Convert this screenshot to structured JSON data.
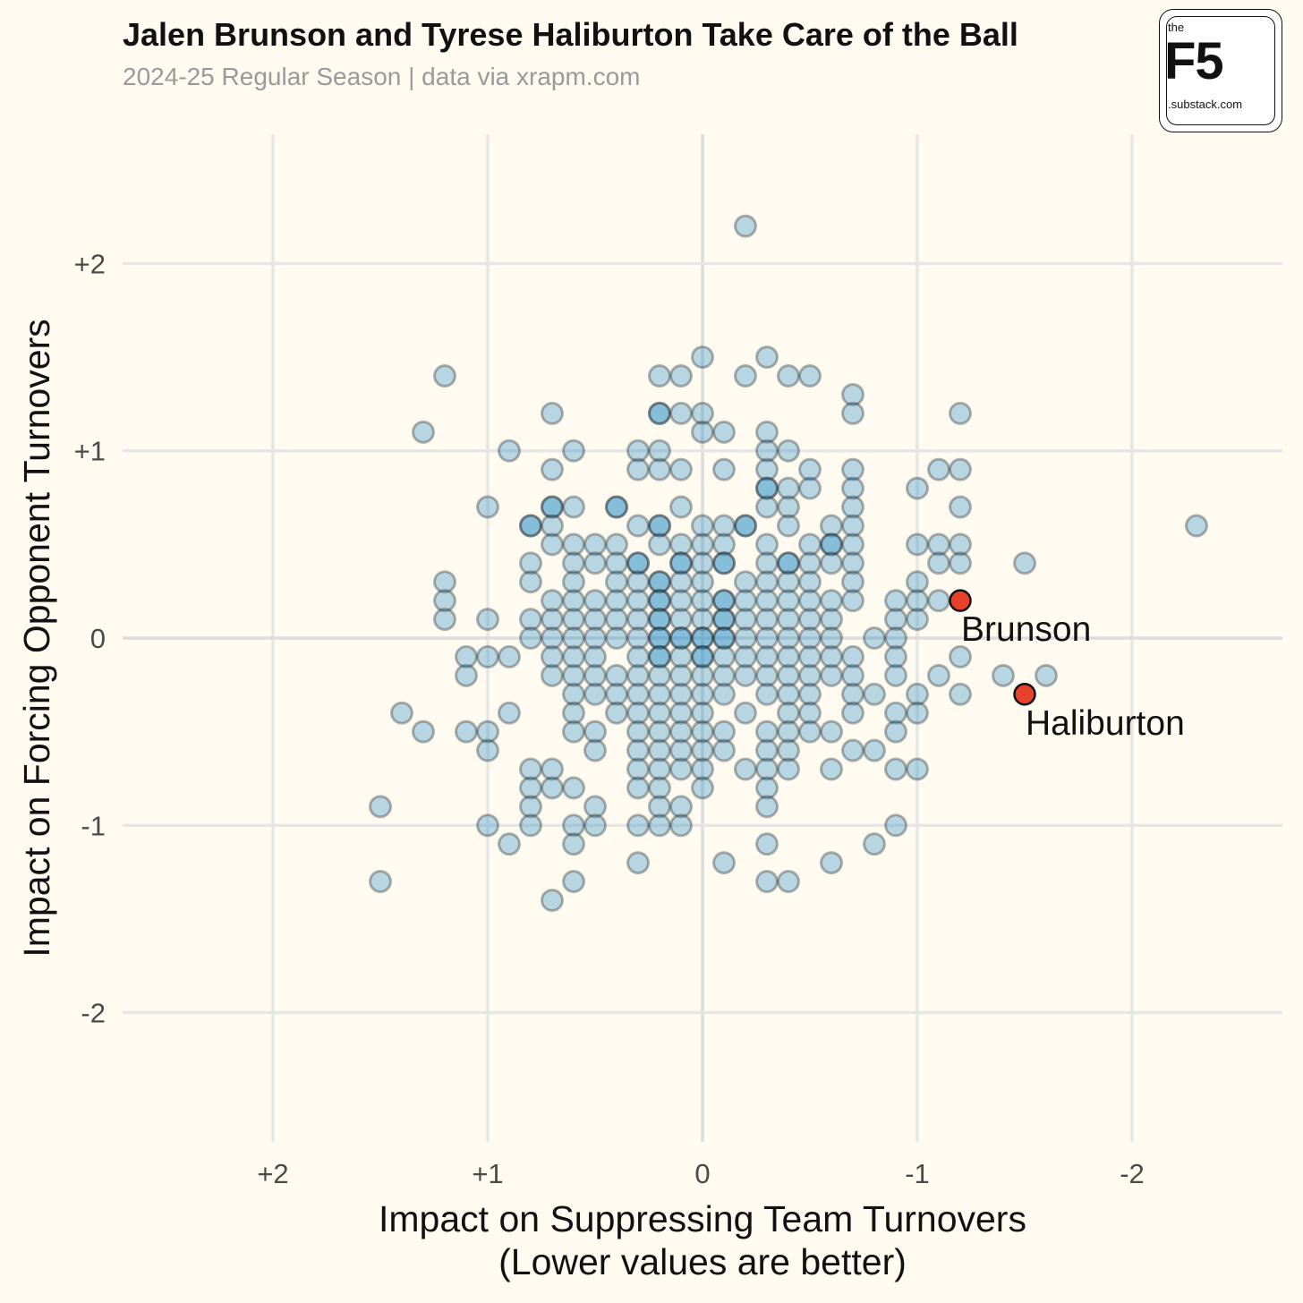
{
  "header": {
    "title": "Jalen Brunson and Tyrese Haliburton Take Care of the Ball",
    "subtitle": "2024-25 Regular Season | data via xrapm.com"
  },
  "logo": {
    "top": "the",
    "main": "F5",
    "bottom": ".substack.com"
  },
  "colors": {
    "background": "#fffbf0",
    "point_fill": "#1f8ac4",
    "point_stroke": "#1a1a1a",
    "highlight_fill": "#e8412c",
    "grid": "#e6e6e6"
  },
  "chart_data": {
    "type": "scatter",
    "xlabel": "Impact on Suppressing Team Turnovers",
    "xlabel_note": "(Lower values are better)",
    "ylabel": "Impact on Forcing Opponent Turnovers",
    "x_reversed": true,
    "xlim": [
      2.7,
      -2.7
    ],
    "ylim": [
      -2.7,
      2.7
    ],
    "x_ticks": [
      {
        "v": 2,
        "label": "+2"
      },
      {
        "v": 1,
        "label": "+1"
      },
      {
        "v": 0,
        "label": "0"
      },
      {
        "v": -1,
        "label": "-1"
      },
      {
        "v": -2,
        "label": "-2"
      }
    ],
    "y_ticks": [
      {
        "v": 2,
        "label": "+2"
      },
      {
        "v": 1,
        "label": "+1"
      },
      {
        "v": 0,
        "label": "0"
      },
      {
        "v": -1,
        "label": "-1"
      },
      {
        "v": -2,
        "label": "-2"
      }
    ],
    "grid": true,
    "points": [
      [
        -0.2,
        2.2
      ],
      [
        0,
        1.5
      ],
      [
        -0.3,
        1.5
      ],
      [
        0.2,
        1.4
      ],
      [
        0.1,
        1.4
      ],
      [
        -0.2,
        1.4
      ],
      [
        -0.4,
        1.4
      ],
      [
        -0.5,
        1.4
      ],
      [
        1.2,
        1.4
      ],
      [
        -0.7,
        1.3
      ],
      [
        0.7,
        1.2
      ],
      [
        0.2,
        1.2
      ],
      [
        0.2,
        1.2
      ],
      [
        0.1,
        1.2
      ],
      [
        0,
        1.2
      ],
      [
        -0.7,
        1.2
      ],
      [
        -1.2,
        1.2
      ],
      [
        1.3,
        1.1
      ],
      [
        0,
        1.1
      ],
      [
        -0.1,
        1.1
      ],
      [
        -0.3,
        1.1
      ],
      [
        0.9,
        1.0
      ],
      [
        0.6,
        1.0
      ],
      [
        0.3,
        1.0
      ],
      [
        0.2,
        1.0
      ],
      [
        -0.3,
        1.0
      ],
      [
        -0.4,
        1.0
      ],
      [
        0.7,
        0.9
      ],
      [
        0.3,
        0.9
      ],
      [
        0.2,
        0.9
      ],
      [
        0.1,
        0.9
      ],
      [
        -0.1,
        0.9
      ],
      [
        -0.3,
        0.9
      ],
      [
        -0.5,
        0.9
      ],
      [
        -0.7,
        0.9
      ],
      [
        -1.1,
        0.9
      ],
      [
        -1.2,
        0.9
      ],
      [
        -0.3,
        0.8
      ],
      [
        -0.3,
        0.8
      ],
      [
        -0.4,
        0.8
      ],
      [
        -0.5,
        0.8
      ],
      [
        -0.7,
        0.8
      ],
      [
        -1.0,
        0.8
      ],
      [
        1.0,
        0.7
      ],
      [
        0.7,
        0.7
      ],
      [
        0.7,
        0.7
      ],
      [
        0.6,
        0.7
      ],
      [
        0.4,
        0.7
      ],
      [
        0.4,
        0.7
      ],
      [
        0.1,
        0.7
      ],
      [
        -0.3,
        0.7
      ],
      [
        -0.4,
        0.7
      ],
      [
        -0.7,
        0.7
      ],
      [
        -1.2,
        0.7
      ],
      [
        0.8,
        0.6
      ],
      [
        0.8,
        0.6
      ],
      [
        0.7,
        0.6
      ],
      [
        0.3,
        0.6
      ],
      [
        0.2,
        0.6
      ],
      [
        0.2,
        0.6
      ],
      [
        0,
        0.6
      ],
      [
        -0.1,
        0.6
      ],
      [
        -0.2,
        0.6
      ],
      [
        -0.2,
        0.6
      ],
      [
        -0.4,
        0.6
      ],
      [
        -0.6,
        0.6
      ],
      [
        -0.7,
        0.6
      ],
      [
        -2.3,
        0.6
      ],
      [
        0.7,
        0.5
      ],
      [
        0.6,
        0.5
      ],
      [
        0.5,
        0.5
      ],
      [
        0.4,
        0.5
      ],
      [
        0.2,
        0.5
      ],
      [
        0.1,
        0.5
      ],
      [
        0,
        0.5
      ],
      [
        -0.1,
        0.5
      ],
      [
        -0.3,
        0.5
      ],
      [
        -0.5,
        0.5
      ],
      [
        -0.6,
        0.5
      ],
      [
        -0.6,
        0.5
      ],
      [
        -0.7,
        0.5
      ],
      [
        -1.0,
        0.5
      ],
      [
        -1.1,
        0.5
      ],
      [
        -1.2,
        0.5
      ],
      [
        0.8,
        0.4
      ],
      [
        0.6,
        0.4
      ],
      [
        0.5,
        0.4
      ],
      [
        0.4,
        0.4
      ],
      [
        0.3,
        0.4
      ],
      [
        0.3,
        0.4
      ],
      [
        0.1,
        0.4
      ],
      [
        0.1,
        0.4
      ],
      [
        0,
        0.4
      ],
      [
        -0.1,
        0.4
      ],
      [
        -0.1,
        0.4
      ],
      [
        -0.3,
        0.4
      ],
      [
        -0.4,
        0.4
      ],
      [
        -0.4,
        0.4
      ],
      [
        -0.5,
        0.4
      ],
      [
        -0.6,
        0.4
      ],
      [
        -0.7,
        0.4
      ],
      [
        -1.1,
        0.4
      ],
      [
        -1.2,
        0.4
      ],
      [
        -1.5,
        0.4
      ],
      [
        1.2,
        0.3
      ],
      [
        0.8,
        0.3
      ],
      [
        0.6,
        0.3
      ],
      [
        0.4,
        0.3
      ],
      [
        0.3,
        0.3
      ],
      [
        0.2,
        0.3
      ],
      [
        0.2,
        0.3
      ],
      [
        0.1,
        0.3
      ],
      [
        0,
        0.3
      ],
      [
        -0.2,
        0.3
      ],
      [
        -0.3,
        0.3
      ],
      [
        -0.4,
        0.3
      ],
      [
        -0.5,
        0.3
      ],
      [
        -0.7,
        0.3
      ],
      [
        -1.0,
        0.3
      ],
      [
        1.2,
        0.2
      ],
      [
        0.7,
        0.2
      ],
      [
        0.6,
        0.2
      ],
      [
        0.5,
        0.2
      ],
      [
        0.4,
        0.2
      ],
      [
        0.3,
        0.2
      ],
      [
        0.2,
        0.2
      ],
      [
        0.2,
        0.2
      ],
      [
        0.1,
        0.2
      ],
      [
        0,
        0.2
      ],
      [
        -0.1,
        0.2
      ],
      [
        -0.1,
        0.2
      ],
      [
        -0.2,
        0.2
      ],
      [
        -0.3,
        0.2
      ],
      [
        -0.4,
        0.2
      ],
      [
        -0.5,
        0.2
      ],
      [
        -0.6,
        0.2
      ],
      [
        -0.7,
        0.2
      ],
      [
        -0.9,
        0.2
      ],
      [
        -1.0,
        0.2
      ],
      [
        -1.1,
        0.2
      ],
      [
        1.2,
        0.1
      ],
      [
        1.0,
        0.1
      ],
      [
        0.8,
        0.1
      ],
      [
        0.7,
        0.1
      ],
      [
        0.6,
        0.1
      ],
      [
        0.5,
        0.1
      ],
      [
        0.4,
        0.1
      ],
      [
        0.3,
        0.1
      ],
      [
        0.2,
        0.1
      ],
      [
        0.2,
        0.1
      ],
      [
        0.1,
        0.1
      ],
      [
        0,
        0.1
      ],
      [
        -0.1,
        0.1
      ],
      [
        -0.1,
        0.1
      ],
      [
        -0.2,
        0.1
      ],
      [
        -0.3,
        0.1
      ],
      [
        -0.4,
        0.1
      ],
      [
        -0.5,
        0.1
      ],
      [
        -0.6,
        0.1
      ],
      [
        -0.9,
        0.1
      ],
      [
        -1.0,
        0.1
      ],
      [
        0.8,
        0
      ],
      [
        0.7,
        0
      ],
      [
        0.6,
        0
      ],
      [
        0.5,
        0
      ],
      [
        0.4,
        0
      ],
      [
        0.3,
        0
      ],
      [
        0.2,
        0
      ],
      [
        0.2,
        0
      ],
      [
        0.1,
        0
      ],
      [
        0.1,
        0
      ],
      [
        0,
        0
      ],
      [
        0,
        0
      ],
      [
        -0.1,
        0
      ],
      [
        -0.1,
        0
      ],
      [
        -0.2,
        0
      ],
      [
        -0.3,
        0
      ],
      [
        -0.4,
        0
      ],
      [
        -0.5,
        0
      ],
      [
        -0.6,
        0
      ],
      [
        -0.8,
        0
      ],
      [
        -0.9,
        0
      ],
      [
        1.1,
        -0.1
      ],
      [
        1.0,
        -0.1
      ],
      [
        0.9,
        -0.1
      ],
      [
        0.7,
        -0.1
      ],
      [
        0.6,
        -0.1
      ],
      [
        0.5,
        -0.1
      ],
      [
        0.3,
        -0.1
      ],
      [
        0.2,
        -0.1
      ],
      [
        0.2,
        -0.1
      ],
      [
        0.1,
        -0.1
      ],
      [
        0,
        -0.1
      ],
      [
        0,
        -0.1
      ],
      [
        -0.1,
        -0.1
      ],
      [
        -0.2,
        -0.1
      ],
      [
        -0.3,
        -0.1
      ],
      [
        -0.4,
        -0.1
      ],
      [
        -0.5,
        -0.1
      ],
      [
        -0.6,
        -0.1
      ],
      [
        -0.7,
        -0.1
      ],
      [
        -0.9,
        -0.1
      ],
      [
        -1.2,
        -0.1
      ],
      [
        1.1,
        -0.2
      ],
      [
        0.7,
        -0.2
      ],
      [
        0.6,
        -0.2
      ],
      [
        0.5,
        -0.2
      ],
      [
        0.4,
        -0.2
      ],
      [
        0.3,
        -0.2
      ],
      [
        0.2,
        -0.2
      ],
      [
        0.1,
        -0.2
      ],
      [
        0,
        -0.2
      ],
      [
        -0.1,
        -0.2
      ],
      [
        -0.2,
        -0.2
      ],
      [
        -0.3,
        -0.2
      ],
      [
        -0.4,
        -0.2
      ],
      [
        -0.5,
        -0.2
      ],
      [
        -0.6,
        -0.2
      ],
      [
        -0.7,
        -0.2
      ],
      [
        -0.9,
        -0.2
      ],
      [
        -1.1,
        -0.2
      ],
      [
        -1.4,
        -0.2
      ],
      [
        -1.6,
        -0.2
      ],
      [
        0.6,
        -0.3
      ],
      [
        0.5,
        -0.3
      ],
      [
        0.4,
        -0.3
      ],
      [
        0.3,
        -0.3
      ],
      [
        0.2,
        -0.3
      ],
      [
        0.1,
        -0.3
      ],
      [
        0,
        -0.3
      ],
      [
        -0.1,
        -0.3
      ],
      [
        -0.3,
        -0.3
      ],
      [
        -0.4,
        -0.3
      ],
      [
        -0.5,
        -0.3
      ],
      [
        -0.7,
        -0.3
      ],
      [
        -0.8,
        -0.3
      ],
      [
        -1.0,
        -0.3
      ],
      [
        -1.2,
        -0.3
      ],
      [
        1.4,
        -0.4
      ],
      [
        0.9,
        -0.4
      ],
      [
        0.6,
        -0.4
      ],
      [
        0.4,
        -0.4
      ],
      [
        0.3,
        -0.4
      ],
      [
        0.2,
        -0.4
      ],
      [
        0.1,
        -0.4
      ],
      [
        0,
        -0.4
      ],
      [
        -0.2,
        -0.4
      ],
      [
        -0.4,
        -0.4
      ],
      [
        -0.5,
        -0.4
      ],
      [
        -0.7,
        -0.4
      ],
      [
        -0.9,
        -0.4
      ],
      [
        -1.0,
        -0.4
      ],
      [
        1.3,
        -0.5
      ],
      [
        1.1,
        -0.5
      ],
      [
        1.0,
        -0.5
      ],
      [
        0.6,
        -0.5
      ],
      [
        0.5,
        -0.5
      ],
      [
        0.3,
        -0.5
      ],
      [
        0.2,
        -0.5
      ],
      [
        0.1,
        -0.5
      ],
      [
        0,
        -0.5
      ],
      [
        -0.1,
        -0.5
      ],
      [
        -0.3,
        -0.5
      ],
      [
        -0.4,
        -0.5
      ],
      [
        -0.5,
        -0.5
      ],
      [
        -0.6,
        -0.5
      ],
      [
        -0.9,
        -0.5
      ],
      [
        1.0,
        -0.6
      ],
      [
        0.5,
        -0.6
      ],
      [
        0.3,
        -0.6
      ],
      [
        0.2,
        -0.6
      ],
      [
        0.1,
        -0.6
      ],
      [
        0,
        -0.6
      ],
      [
        -0.1,
        -0.6
      ],
      [
        -0.3,
        -0.6
      ],
      [
        -0.4,
        -0.6
      ],
      [
        -0.7,
        -0.6
      ],
      [
        -0.8,
        -0.6
      ],
      [
        0.8,
        -0.7
      ],
      [
        0.7,
        -0.7
      ],
      [
        0.3,
        -0.7
      ],
      [
        0.2,
        -0.7
      ],
      [
        0.1,
        -0.7
      ],
      [
        0,
        -0.7
      ],
      [
        -0.2,
        -0.7
      ],
      [
        -0.3,
        -0.7
      ],
      [
        -0.4,
        -0.7
      ],
      [
        -0.6,
        -0.7
      ],
      [
        -0.9,
        -0.7
      ],
      [
        -1.0,
        -0.7
      ],
      [
        0.8,
        -0.8
      ],
      [
        0.7,
        -0.8
      ],
      [
        0.6,
        -0.8
      ],
      [
        0.3,
        -0.8
      ],
      [
        0.2,
        -0.8
      ],
      [
        0,
        -0.8
      ],
      [
        -0.3,
        -0.8
      ],
      [
        1.5,
        -0.9
      ],
      [
        0.8,
        -0.9
      ],
      [
        0.5,
        -0.9
      ],
      [
        0.2,
        -0.9
      ],
      [
        0.1,
        -0.9
      ],
      [
        -0.3,
        -0.9
      ],
      [
        1.0,
        -1.0
      ],
      [
        0.8,
        -1.0
      ],
      [
        0.6,
        -1.0
      ],
      [
        0.5,
        -1.0
      ],
      [
        0.3,
        -1.0
      ],
      [
        0.2,
        -1.0
      ],
      [
        0.1,
        -1.0
      ],
      [
        -0.9,
        -1.0
      ],
      [
        0.9,
        -1.1
      ],
      [
        0.6,
        -1.1
      ],
      [
        -0.3,
        -1.1
      ],
      [
        -0.8,
        -1.1
      ],
      [
        0.3,
        -1.2
      ],
      [
        -0.1,
        -1.2
      ],
      [
        -0.6,
        -1.2
      ],
      [
        1.5,
        -1.3
      ],
      [
        0.6,
        -1.3
      ],
      [
        -0.3,
        -1.3
      ],
      [
        -0.4,
        -1.3
      ],
      [
        0.7,
        -1.4
      ]
    ],
    "highlights": [
      {
        "name": "Brunson",
        "x": -1.2,
        "y": 0.2
      },
      {
        "name": "Haliburton",
        "x": -1.5,
        "y": -0.3
      }
    ]
  }
}
